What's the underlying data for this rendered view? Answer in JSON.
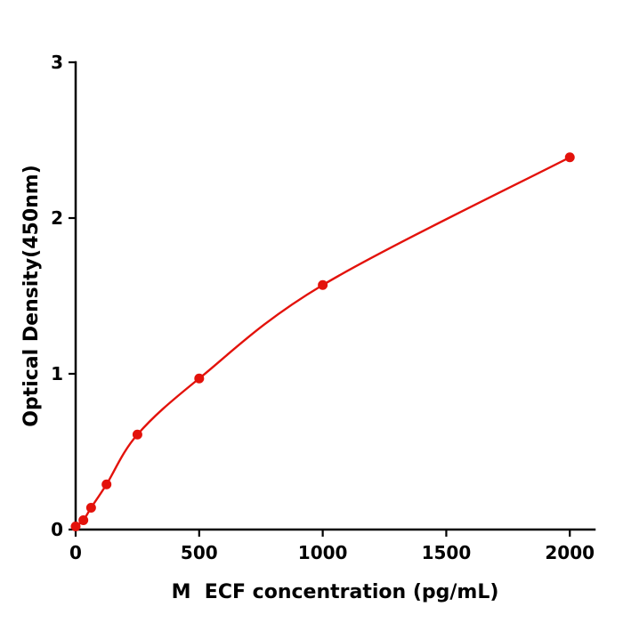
{
  "chart_data": {
    "type": "scatter",
    "title": "",
    "xlabel": "M  ECF concentration (pg/mL)",
    "ylabel": "Optical Density(450nm)",
    "x": [
      0,
      31.25,
      62.5,
      125,
      250,
      500,
      1000,
      2000
    ],
    "y": [
      0.02,
      0.06,
      0.14,
      0.29,
      0.61,
      0.97,
      1.57,
      2.39
    ],
    "xticks": [
      0,
      500,
      1000,
      1500,
      2000
    ],
    "yticks": [
      0,
      1,
      2,
      3
    ],
    "xlim": [
      0,
      2100
    ],
    "ylim": [
      0,
      3
    ],
    "grid": false,
    "legend": null,
    "line_color": "#e3120b",
    "marker_color": "#e3120b",
    "marker_radius": 5.5,
    "fit": "smooth curve through points"
  },
  "colors": {
    "axis": "#000000",
    "background": "#ffffff"
  }
}
